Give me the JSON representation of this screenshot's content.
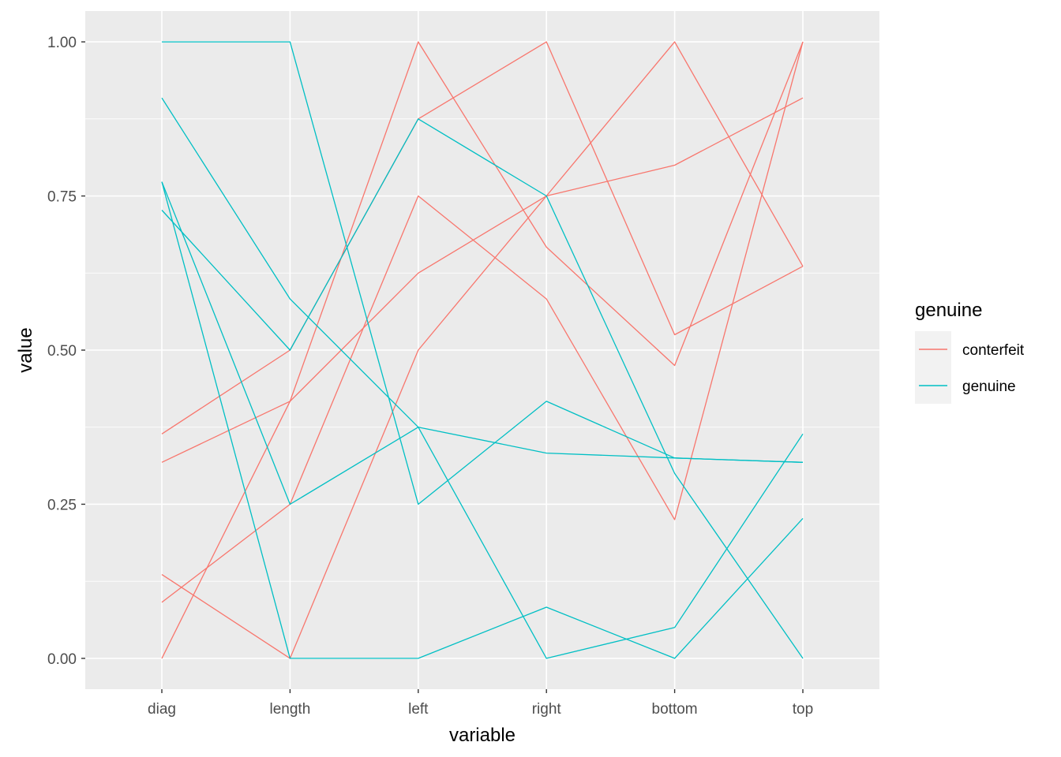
{
  "chart_data": {
    "type": "line",
    "xlabel": "variable",
    "ylabel": "value",
    "categories": [
      "diag",
      "length",
      "left",
      "right",
      "bottom",
      "top"
    ],
    "ylim": [
      -0.05,
      1.05
    ],
    "yticks": [
      0,
      0.25,
      0.5,
      0.75,
      1
    ],
    "ytick_labels": [
      "0.00",
      "0.25",
      "0.50",
      "0.75",
      "1.00"
    ],
    "grid": true,
    "legend": {
      "title": "genuine",
      "placement": "right",
      "entries": [
        {
          "label": "conterfeit",
          "color": "#F8766D"
        },
        {
          "label": "genuine",
          "color": "#00BFC4"
        }
      ]
    },
    "series": [
      {
        "group": "conterfeit",
        "color": "#F8766D",
        "values": [
          0.364,
          0.5,
          0.875,
          1.0,
          0.525,
          0.636
        ]
      },
      {
        "group": "conterfeit",
        "color": "#F8766D",
        "values": [
          0.318,
          0.417,
          1.0,
          0.667,
          0.475,
          1.0
        ]
      },
      {
        "group": "conterfeit",
        "color": "#F8766D",
        "values": [
          0.136,
          0.0,
          0.5,
          0.75,
          0.8,
          0.909
        ]
      },
      {
        "group": "conterfeit",
        "color": "#F8766D",
        "values": [
          0.091,
          0.25,
          0.75,
          0.583,
          0.225,
          1.0
        ]
      },
      {
        "group": "conterfeit",
        "color": "#F8766D",
        "values": [
          0.0,
          0.417,
          0.625,
          0.75,
          1.0,
          0.636
        ]
      },
      {
        "group": "genuine",
        "color": "#00BFC4",
        "values": [
          1.0,
          1.0,
          0.25,
          0.417,
          0.325,
          0.318
        ]
      },
      {
        "group": "genuine",
        "color": "#00BFC4",
        "values": [
          0.909,
          0.583,
          0.375,
          0.0,
          0.05,
          0.364
        ]
      },
      {
        "group": "genuine",
        "color": "#00BFC4",
        "values": [
          0.773,
          0.0,
          0.0,
          0.083,
          0.0,
          0.227
        ]
      },
      {
        "group": "genuine",
        "color": "#00BFC4",
        "values": [
          0.773,
          0.25,
          0.375,
          0.333,
          0.325,
          0.318
        ]
      },
      {
        "group": "genuine",
        "color": "#00BFC4",
        "values": [
          0.727,
          0.5,
          0.875,
          0.75,
          0.3,
          0.0
        ]
      }
    ]
  }
}
